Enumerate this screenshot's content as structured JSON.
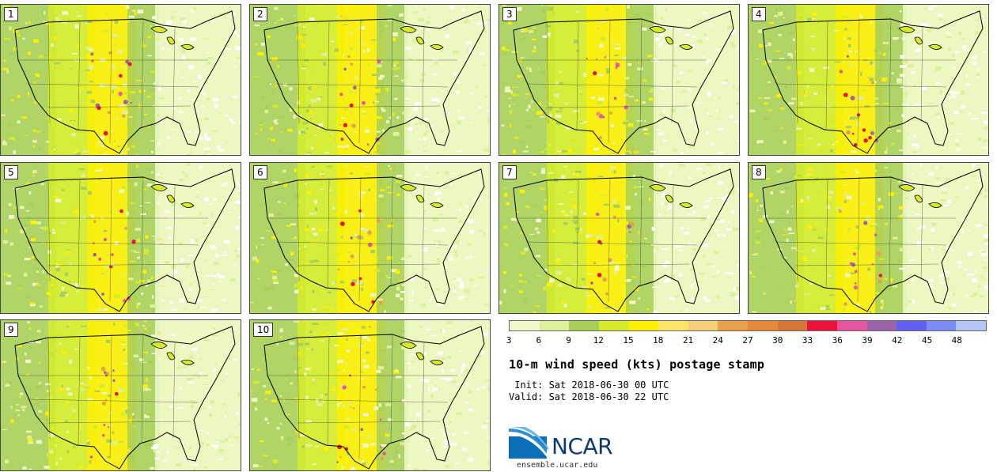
{
  "panels": [
    {
      "label": "1"
    },
    {
      "label": "2"
    },
    {
      "label": "3"
    },
    {
      "label": "4"
    },
    {
      "label": "5"
    },
    {
      "label": "6"
    },
    {
      "label": "7"
    },
    {
      "label": "8"
    },
    {
      "label": "9"
    },
    {
      "label": "10"
    }
  ],
  "colorbar": {
    "ticks": [
      "3",
      "6",
      "9",
      "12",
      "15",
      "18",
      "21",
      "24",
      "27",
      "30",
      "33",
      "36",
      "39",
      "42",
      "45",
      "48"
    ],
    "colors": [
      "#f0f8c8",
      "#dff09a",
      "#a8cf5c",
      "#d6ec2a",
      "#fdf000",
      "#fce36a",
      "#f6cf7a",
      "#e9a04a",
      "#e4883a",
      "#d97738",
      "#e8123c",
      "#e656a0",
      "#9a63a8",
      "#6060f0",
      "#7b8cf6",
      "#b4c6f8"
    ]
  },
  "title": "10-m wind speed (kts) postage stamp",
  "init": " Init: Sat 2018-06-30 00 UTC",
  "valid": "Valid: Sat 2018-06-30 22 UTC",
  "logo": {
    "text": "NCAR",
    "site": "ensemble.ucar.edu"
  }
}
